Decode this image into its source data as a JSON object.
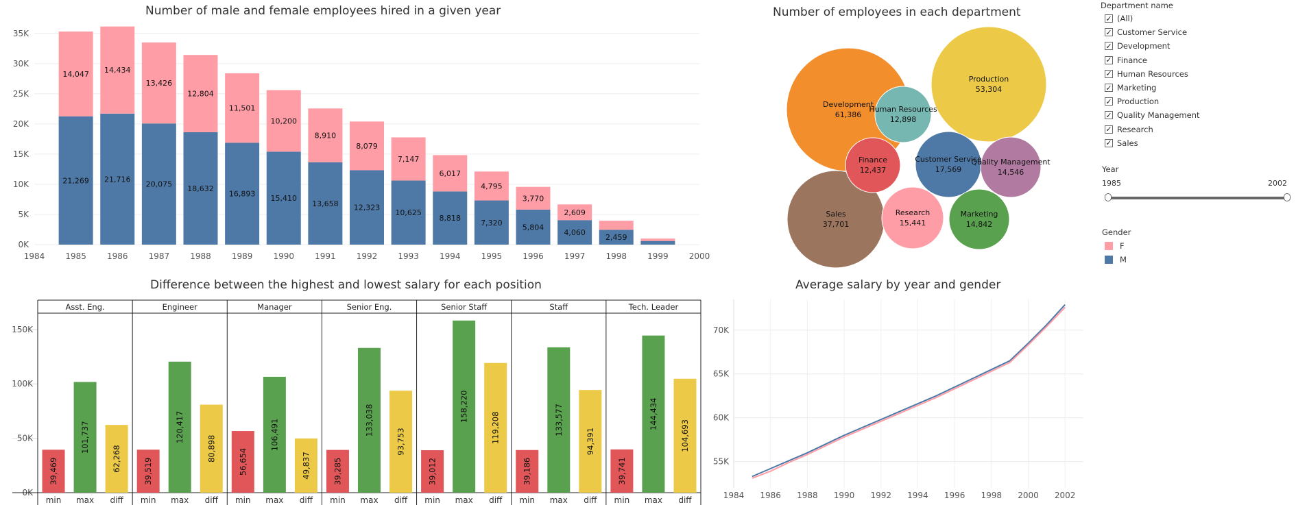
{
  "chart_data": [
    {
      "type": "bar",
      "title": "Number of male and female employees hired in a given year",
      "stacked": true,
      "categories": [
        "1985",
        "1986",
        "1987",
        "1988",
        "1989",
        "1990",
        "1991",
        "1992",
        "1993",
        "1994",
        "1995",
        "1996",
        "1997",
        "1998",
        "1999"
      ],
      "series": [
        {
          "name": "M",
          "color": "#4e79a7",
          "values": [
            21269,
            21716,
            20075,
            18632,
            16893,
            15410,
            13658,
            12323,
            10625,
            8818,
            7320,
            5804,
            4060,
            2459,
            600
          ]
        },
        {
          "name": "F",
          "color": "#ff9da7",
          "values": [
            14047,
            14434,
            13426,
            12804,
            11501,
            10200,
            8910,
            8079,
            7147,
            6017,
            4795,
            3770,
            2609,
            1500,
            400
          ]
        }
      ],
      "labels_m": [
        "21,269",
        "21,716",
        "20,075",
        "18,632",
        "16,893",
        "15,410",
        "13,658",
        "12,323",
        "10,625",
        "8,818",
        "7,320",
        "5,804",
        "4,060",
        "2,459",
        ""
      ],
      "labels_f": [
        "14,047",
        "14,434",
        "13,426",
        "12,804",
        "11,501",
        "10,200",
        "8,910",
        "8,079",
        "7,147",
        "6,017",
        "4,795",
        "3,770",
        "2,609",
        "",
        ""
      ],
      "x_ticks": [
        "1984",
        "1985",
        "1986",
        "1987",
        "1988",
        "1989",
        "1990",
        "1991",
        "1992",
        "1993",
        "1994",
        "1995",
        "1996",
        "1997",
        "1998",
        "1999",
        "2000"
      ],
      "y_ticks": [
        "0K",
        "5K",
        "10K",
        "15K",
        "20K",
        "25K",
        "30K",
        "35K"
      ],
      "ylim": [
        0,
        36000
      ],
      "grid": true
    },
    {
      "type": "bubble",
      "title": "Number of employees in each department",
      "items": [
        {
          "name": "Development",
          "value_label": "61,386",
          "value": 61386,
          "color": "#f28e2b"
        },
        {
          "name": "Production",
          "value_label": "53,304",
          "value": 53304,
          "color": "#edc948"
        },
        {
          "name": "Sales",
          "value_label": "37,701",
          "value": 37701,
          "color": "#9c755f"
        },
        {
          "name": "Customer Service",
          "value_label": "17,569",
          "value": 17569,
          "color": "#4e79a7"
        },
        {
          "name": "Research",
          "value_label": "15,441",
          "value": 15441,
          "color": "#ff9da7"
        },
        {
          "name": "Marketing",
          "value_label": "14,842",
          "value": 14842,
          "color": "#59a14f"
        },
        {
          "name": "Quality Management",
          "value_label": "14,546",
          "value": 14546,
          "color": "#b07aa1"
        },
        {
          "name": "Human Resources",
          "value_label": "12,898",
          "value": 12898,
          "color": "#76b7b2"
        },
        {
          "name": "Finance",
          "value_label": "12,437",
          "value": 12437,
          "color": "#e15759"
        }
      ]
    },
    {
      "type": "bar",
      "title": "Difference between the highest and lowest salary for each position",
      "panels": [
        {
          "name": "Asst. Eng.",
          "min": 39469,
          "max": 101737,
          "diff": 62268,
          "labels": [
            "39,469",
            "101,737",
            "62,268"
          ]
        },
        {
          "name": "Engineer",
          "min": 39519,
          "max": 120417,
          "diff": 80898,
          "labels": [
            "39,519",
            "120,417",
            "80,898"
          ]
        },
        {
          "name": "Manager",
          "min": 56654,
          "max": 106491,
          "diff": 49837,
          "labels": [
            "56,654",
            "106,491",
            "49,837"
          ]
        },
        {
          "name": "Senior Eng.",
          "min": 39285,
          "max": 133038,
          "diff": 93753,
          "labels": [
            "39,285",
            "133,038",
            "93,753"
          ]
        },
        {
          "name": "Senior Staff",
          "min": 39012,
          "max": 158220,
          "diff": 119208,
          "labels": [
            "39,012",
            "158,220",
            "119,208"
          ]
        },
        {
          "name": "Staff",
          "min": 39186,
          "max": 133577,
          "diff": 94391,
          "labels": [
            "39,186",
            "133,577",
            "94,391"
          ]
        },
        {
          "name": "Tech. Leader",
          "min": 39741,
          "max": 144434,
          "diff": 104693,
          "labels": [
            "39,741",
            "144,434",
            "104,693"
          ]
        }
      ],
      "measures": [
        "min",
        "max",
        "diff"
      ],
      "colors": {
        "min": "#e15759",
        "max": "#59a14f",
        "diff": "#edc948"
      },
      "y_ticks": [
        "0K",
        "50K",
        "100K",
        "150K"
      ],
      "ylim": [
        0,
        165000
      ]
    },
    {
      "type": "line",
      "title": "Average salary by year and gender",
      "x": [
        1985,
        1986,
        1987,
        1988,
        1989,
        1990,
        1991,
        1992,
        1993,
        1994,
        1995,
        1996,
        1997,
        1998,
        1999,
        2000,
        2001,
        2002
      ],
      "series": [
        {
          "name": "M",
          "color": "#4e79a7",
          "values": [
            53300,
            54200,
            55100,
            56000,
            57000,
            58000,
            58900,
            59800,
            60700,
            61600,
            62500,
            63500,
            64500,
            65500,
            66500,
            68500,
            70600,
            72900
          ]
        },
        {
          "name": "F",
          "color": "#ff9da7",
          "values": [
            53100,
            53900,
            54900,
            55800,
            56800,
            57800,
            58700,
            59600,
            60500,
            61400,
            62300,
            63300,
            64300,
            65300,
            66300,
            68300,
            70400,
            72600
          ]
        }
      ],
      "x_ticks": [
        "1984",
        "1986",
        "1988",
        "1990",
        "1992",
        "1994",
        "1996",
        "1998",
        "2000",
        "2002"
      ],
      "y_ticks": [
        "55K",
        "60K",
        "65K",
        "70K"
      ],
      "ylim": [
        52000,
        73500
      ],
      "xlim": [
        1984,
        2003
      ]
    }
  ],
  "filters": {
    "department_title": "Department name",
    "department_items": [
      "(All)",
      "Customer Service",
      "Development",
      "Finance",
      "Human Resources",
      "Marketing",
      "Production",
      "Quality Management",
      "Research",
      "Sales"
    ],
    "check_mark": "✓",
    "year_title": "Year",
    "year_min": "1985",
    "year_max": "2002",
    "gender_title": "Gender",
    "gender_items": [
      {
        "label": "F",
        "color": "#ff9da7"
      },
      {
        "label": "M",
        "color": "#4e79a7"
      }
    ]
  }
}
